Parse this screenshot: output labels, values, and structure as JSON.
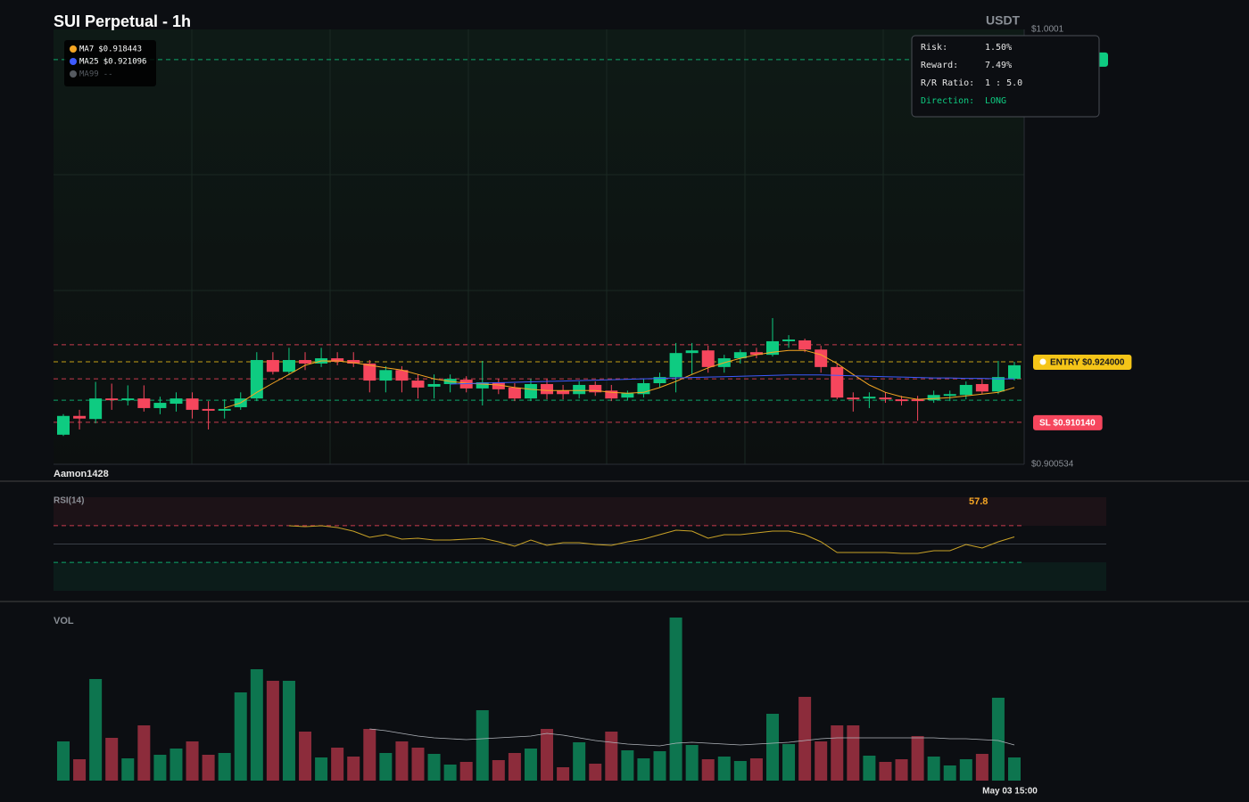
{
  "chart_data": [
    {
      "type": "candlestick",
      "title": "SUI Perpetual - 1h",
      "unit": "USDT",
      "watermark": "Aamon1428",
      "up_color": "#0ecb81",
      "down_color": "#f6465d",
      "ylim": [
        0.900534,
        1.0001
      ],
      "yticks": [
        {
          "value": 1.0001,
          "label": "$1.0001"
        },
        {
          "value": 0.900534,
          "label": "$0.900534"
        }
      ],
      "open": [
        0.9073,
        0.9116,
        0.9109,
        0.9156,
        0.9152,
        0.9156,
        0.9134,
        0.9144,
        0.9156,
        0.9132,
        0.9128,
        0.9136,
        0.9156,
        0.9244,
        0.9217,
        0.9244,
        0.9236,
        0.9248,
        0.9244,
        0.9236,
        0.9197,
        0.9221,
        0.9197,
        0.9183,
        0.9189,
        0.9199,
        0.9179,
        0.9193,
        0.9181,
        0.9156,
        0.9189,
        0.9174,
        0.9166,
        0.9187,
        0.9174,
        0.9158,
        0.9166,
        0.9191,
        0.9205,
        0.926,
        0.9266,
        0.9228,
        0.9248,
        0.9262,
        0.9256,
        0.9287,
        0.9289,
        0.9268,
        0.9228,
        0.9158,
        0.9156,
        0.9158,
        0.9154,
        0.9154,
        0.9152,
        0.9162,
        0.9164,
        0.9189,
        0.9172,
        0.9201
      ],
      "close": [
        0.9116,
        0.911,
        0.9156,
        0.9152,
        0.9156,
        0.9134,
        0.9146,
        0.9156,
        0.913,
        0.9128,
        0.9132,
        0.9156,
        0.9244,
        0.9217,
        0.9244,
        0.9236,
        0.9248,
        0.924,
        0.9236,
        0.9197,
        0.9221,
        0.9197,
        0.9181,
        0.9189,
        0.9201,
        0.9179,
        0.9193,
        0.9177,
        0.9156,
        0.9189,
        0.9166,
        0.9166,
        0.9187,
        0.917,
        0.9156,
        0.9168,
        0.9191,
        0.9205,
        0.926,
        0.9266,
        0.9228,
        0.9248,
        0.9262,
        0.9256,
        0.9287,
        0.9291,
        0.9268,
        0.9228,
        0.9158,
        0.9154,
        0.916,
        0.9154,
        0.915,
        0.915,
        0.9164,
        0.9166,
        0.9187,
        0.9172,
        0.9205,
        0.9232
      ],
      "high": [
        0.912,
        0.913,
        0.9194,
        0.919,
        0.9186,
        0.9186,
        0.916,
        0.917,
        0.917,
        0.915,
        0.9154,
        0.917,
        0.9262,
        0.9262,
        0.9272,
        0.9262,
        0.9272,
        0.9262,
        0.9262,
        0.9244,
        0.923,
        0.923,
        0.9211,
        0.9211,
        0.9211,
        0.9207,
        0.9242,
        0.9201,
        0.9191,
        0.9201,
        0.9201,
        0.9187,
        0.9195,
        0.9195,
        0.9187,
        0.9174,
        0.9201,
        0.9215,
        0.9283,
        0.9283,
        0.9277,
        0.9256,
        0.9268,
        0.9272,
        0.934,
        0.9301,
        0.9293,
        0.9277,
        0.9236,
        0.917,
        0.917,
        0.917,
        0.9162,
        0.9162,
        0.9174,
        0.9174,
        0.9195,
        0.9201,
        0.9242,
        0.924
      ],
      "low": [
        0.907,
        0.9085,
        0.9099,
        0.913,
        0.914,
        0.9126,
        0.912,
        0.9126,
        0.911,
        0.9085,
        0.911,
        0.913,
        0.915,
        0.9211,
        0.9211,
        0.9221,
        0.9228,
        0.9232,
        0.9228,
        0.917,
        0.917,
        0.917,
        0.9156,
        0.9156,
        0.917,
        0.917,
        0.914,
        0.9166,
        0.915,
        0.915,
        0.9154,
        0.9154,
        0.9156,
        0.9162,
        0.915,
        0.9152,
        0.9158,
        0.9181,
        0.917,
        0.9211,
        0.9215,
        0.9215,
        0.9236,
        0.9248,
        0.9252,
        0.9272,
        0.9262,
        0.9215,
        0.9154,
        0.9126,
        0.9134,
        0.9146,
        0.914,
        0.9105,
        0.9146,
        0.915,
        0.9154,
        0.9166,
        0.9166,
        0.9197
      ],
      "series": [
        {
          "name": "MA7",
          "color": "#f5a623",
          "legend_value": "$0.918443",
          "values": [
            null,
            null,
            null,
            null,
            null,
            null,
            null,
            null,
            null,
            null,
            0.9134,
            0.9146,
            0.917,
            0.9191,
            0.9211,
            0.9232,
            0.9242,
            0.9242,
            0.9238,
            0.9232,
            0.9226,
            0.9221,
            0.9211,
            0.9201,
            0.9195,
            0.9191,
            0.9189,
            0.9187,
            0.9181,
            0.9177,
            0.9174,
            0.9174,
            0.9174,
            0.9174,
            0.917,
            0.9168,
            0.917,
            0.9181,
            0.9195,
            0.9211,
            0.9226,
            0.9238,
            0.9248,
            0.9256,
            0.9262,
            0.9266,
            0.9266,
            0.9256,
            0.9236,
            0.9211,
            0.9187,
            0.917,
            0.916,
            0.9154,
            0.9156,
            0.9158,
            0.9162,
            0.9166,
            0.917,
            0.9181
          ]
        },
        {
          "name": "MA25",
          "color": "#3d5afe",
          "legend_value": "$0.921096",
          "values": [
            null,
            null,
            null,
            null,
            null,
            null,
            null,
            null,
            null,
            null,
            null,
            null,
            null,
            null,
            null,
            null,
            null,
            null,
            null,
            null,
            null,
            null,
            null,
            null,
            0.9189,
            0.919,
            0.9191,
            0.9192,
            0.9193,
            0.9194,
            0.9195,
            0.9196,
            0.9197,
            0.9198,
            0.9199,
            0.92,
            0.9201,
            0.9202,
            0.9203,
            0.9204,
            0.9205,
            0.9206,
            0.9207,
            0.9208,
            0.9209,
            0.921,
            0.921,
            0.921,
            0.9209,
            0.9208,
            0.9207,
            0.9206,
            0.9205,
            0.9204,
            0.9203,
            0.9203,
            0.9202,
            0.9202,
            0.9201,
            0.9201
          ]
        },
        {
          "name": "MA99",
          "color": "#555a60",
          "legend_value": "--"
        }
      ],
      "levels": [
        {
          "value": 0.9932,
          "color": "#0ecb81",
          "badge": true
        },
        {
          "value": 0.9279,
          "color": "#f6465d"
        },
        {
          "value": 0.924,
          "label": "ENTRY $0.924000",
          "color": "#f5c518",
          "badge": true
        },
        {
          "value": 0.9201,
          "color": "#f6465d"
        },
        {
          "value": 0.9152,
          "color": "#0ecb81"
        },
        {
          "value": 0.91014,
          "label": "SL $0.910140",
          "color": "#f6465d",
          "badge": true
        }
      ]
    },
    {
      "type": "line",
      "title": "RSI(14)",
      "color": "#c9a227",
      "ylim": [
        0,
        100
      ],
      "values": [
        null,
        null,
        null,
        null,
        null,
        null,
        null,
        null,
        null,
        null,
        null,
        null,
        null,
        null,
        69.9,
        68.9,
        69.9,
        68,
        64,
        57.3,
        60.2,
        55.3,
        56.3,
        54.4,
        54.4,
        55.3,
        56.3,
        52.4,
        47.6,
        54.4,
        48.5,
        51.5,
        51.5,
        49.5,
        48.5,
        52.4,
        55.3,
        60.2,
        65,
        64.1,
        56.3,
        60.2,
        60.2,
        62.1,
        64.1,
        64.1,
        60.2,
        52.4,
        40.8,
        40.8,
        40.8,
        40.8,
        39.8,
        39.8,
        42.7,
        42.7,
        49.5,
        45.6,
        52.4,
        57.8
      ],
      "levels": [
        {
          "value": 70,
          "color": "#f6465d",
          "dashed": true
        },
        {
          "value": 50,
          "color": "#3a3f47"
        },
        {
          "value": 30,
          "color": "#0ecb81",
          "dashed": true
        }
      ]
    },
    {
      "type": "bar",
      "title": "VOL",
      "ylim": [
        0,
        183
      ],
      "categories": [
        null,
        null,
        null,
        null,
        null,
        null,
        null,
        null,
        null,
        null,
        null,
        null,
        null,
        null,
        null,
        null,
        null,
        null,
        null,
        null,
        null,
        null,
        null,
        null,
        null,
        null,
        null,
        null,
        null,
        null,
        null,
        null,
        null,
        null,
        null,
        null,
        null,
        null,
        null,
        null,
        null,
        null,
        null,
        null,
        null,
        null,
        null,
        null,
        null,
        null,
        null,
        null,
        null,
        null,
        null,
        null,
        null,
        null,
        null,
        "May 03 15:00"
      ],
      "values": [
        44,
        24,
        114,
        48,
        25,
        62,
        29,
        36,
        44,
        29,
        31,
        99,
        125,
        112,
        112,
        55,
        26,
        37,
        27,
        58,
        31,
        44,
        37,
        30,
        18,
        21,
        79,
        23,
        31,
        36,
        58,
        15,
        43,
        19,
        55,
        34,
        25,
        33,
        183,
        40,
        24,
        27,
        22,
        25,
        75,
        41,
        94,
        44,
        62,
        62,
        28,
        21,
        24,
        50,
        27,
        17,
        24,
        30,
        93,
        26
      ],
      "ma": {
        "color": "#b0b4ba",
        "values": [
          null,
          null,
          null,
          null,
          null,
          null,
          null,
          null,
          null,
          null,
          null,
          null,
          null,
          null,
          null,
          null,
          null,
          null,
          null,
          58,
          56,
          53,
          50,
          48,
          47,
          46,
          47,
          48,
          49,
          50,
          53,
          51,
          48,
          45,
          43,
          41,
          40,
          39,
          42,
          43,
          42,
          41,
          40,
          41,
          42,
          43,
          45,
          47,
          48,
          48,
          48,
          48,
          48,
          48,
          48,
          47,
          47,
          46,
          45,
          40
        ]
      }
    }
  ],
  "risk_panel": {
    "rows": [
      {
        "label": "Risk:",
        "value": "1.50%"
      },
      {
        "label": "Reward:",
        "value": "7.49%"
      },
      {
        "label": "R/R Ratio:",
        "value": "1 : 5.0"
      },
      {
        "label": "Direction:",
        "value": "LONG"
      }
    ]
  }
}
